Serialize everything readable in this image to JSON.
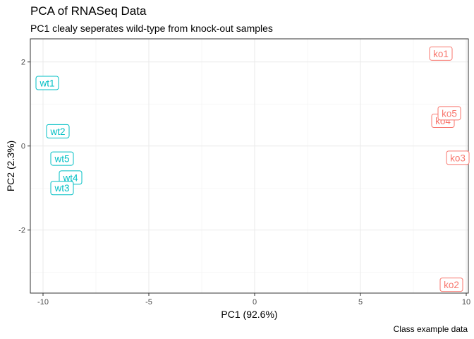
{
  "title": "PCA of RNASeq Data",
  "subtitle": "PC1 clealy seperates wild-type from knock-out samples",
  "caption": "Class example data",
  "chart_data": {
    "type": "scatter",
    "title": "PCA of RNASeq Data",
    "subtitle": "PC1 clealy seperates wild-type from knock-out samples",
    "xlabel": "PC1 (92.6%)",
    "ylabel": "PC2 (2.3%)",
    "xlim": [
      -10.6,
      10.1
    ],
    "ylim": [
      -3.5,
      2.55
    ],
    "xticks": [
      -10,
      -5,
      0,
      5,
      10
    ],
    "yticks": [
      -2,
      0,
      2
    ],
    "xtick_labels": [
      "-10",
      "-5",
      "0",
      "5",
      "10"
    ],
    "ytick_labels": [
      "-2",
      "0",
      "2"
    ],
    "grid": true,
    "groups": [
      {
        "color": "#00BFC4",
        "points": [
          {
            "label": "wt1",
            "x": -9.8,
            "y": 1.5
          },
          {
            "label": "wt2",
            "x": -9.3,
            "y": 0.35
          },
          {
            "label": "wt5",
            "x": -9.1,
            "y": -0.3
          },
          {
            "label": "wt4",
            "x": -8.7,
            "y": -0.75
          },
          {
            "label": "wt3",
            "x": -9.1,
            "y": -1.0
          }
        ]
      },
      {
        "color": "#F8766D",
        "points": [
          {
            "label": "ko1",
            "x": 8.8,
            "y": 2.2
          },
          {
            "label": "ko4",
            "x": 8.9,
            "y": 0.6
          },
          {
            "label": "ko5",
            "x": 9.2,
            "y": 0.78
          },
          {
            "label": "ko3",
            "x": 9.6,
            "y": -0.28
          },
          {
            "label": "ko2",
            "x": 9.3,
            "y": -3.3
          }
        ]
      }
    ]
  }
}
